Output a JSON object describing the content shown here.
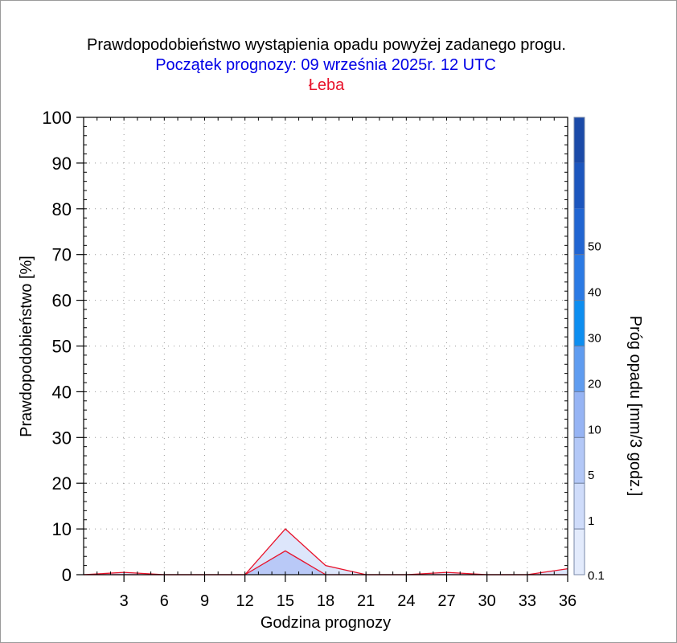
{
  "chart_data": {
    "type": "area",
    "title": "Prawdopodobieństwo wystąpienia opadu powyżej zadanego progu.",
    "subtitle": "Początek prognozy: 09 września 2025r. 12 UTC",
    "location": "Łeba",
    "xlabel": "Godzina prognozy",
    "ylabel": "Prawdopodobieństwo [%]",
    "xlim": [
      0,
      36
    ],
    "ylim": [
      0,
      100
    ],
    "x_ticks": [
      3,
      6,
      9,
      12,
      15,
      18,
      21,
      24,
      27,
      30,
      33,
      36
    ],
    "y_ticks": [
      0,
      10,
      20,
      30,
      40,
      50,
      60,
      70,
      80,
      90,
      100
    ],
    "grid": true,
    "x": [
      0,
      3,
      6,
      9,
      12,
      15,
      18,
      21,
      24,
      27,
      30,
      33,
      36
    ],
    "series": [
      {
        "name": "0.1",
        "color": "#dde6fb",
        "values": [
          0,
          0.5,
          0,
          0,
          0,
          10,
          2,
          0,
          0,
          0.5,
          0,
          0,
          1.3
        ]
      },
      {
        "name": "1",
        "color": "#b9c9f7",
        "values": [
          0,
          0,
          0,
          0,
          0,
          5.2,
          0,
          0,
          0,
          0,
          0,
          0,
          0
        ]
      }
    ],
    "outline_color": "#e8122a",
    "colorbar": {
      "label": "Próg opadu [mm/3 godz.]",
      "tick_labels": [
        "0.1",
        "1",
        "5",
        "10",
        "20",
        "30",
        "40",
        "50"
      ],
      "colors": [
        "#e3ebfc",
        "#cfdcfa",
        "#b3c8f7",
        "#96b4f4",
        "#5f9cf0",
        "#0d8ef0",
        "#2b7ae4",
        "#2165d2",
        "#1c56be",
        "#1b4aa8"
      ]
    }
  }
}
